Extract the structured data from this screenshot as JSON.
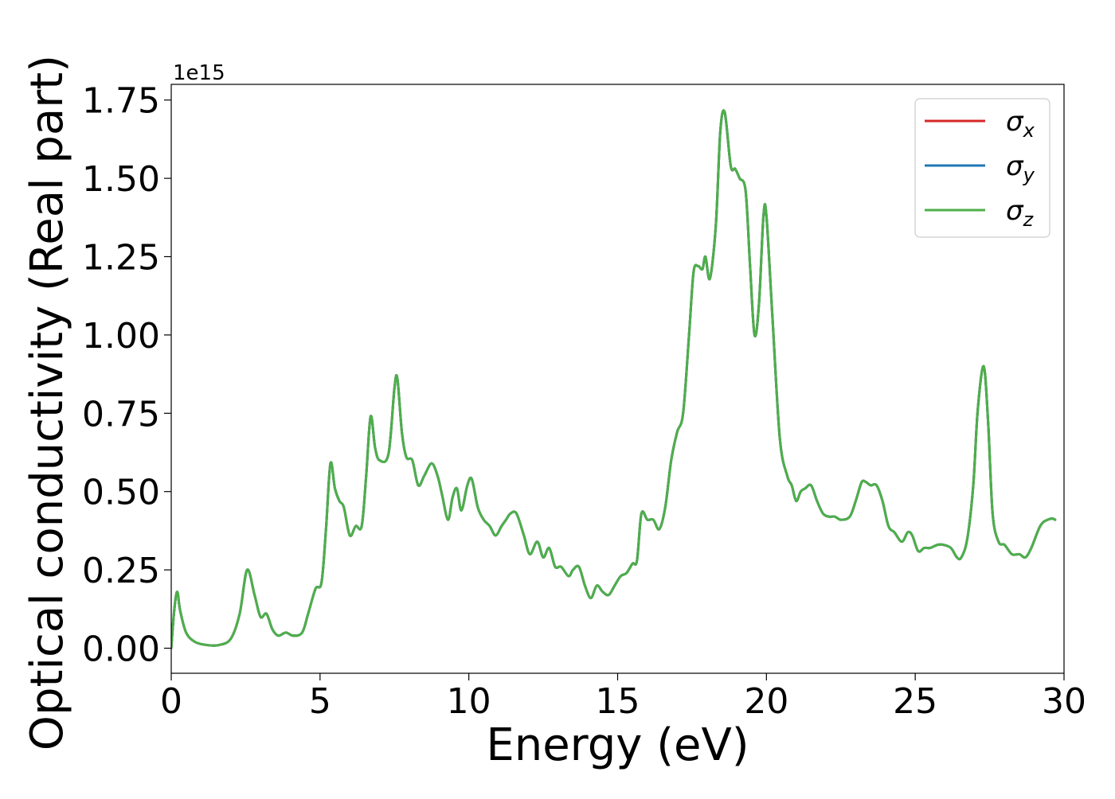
{
  "chart_data": {
    "type": "line",
    "title": "",
    "xlabel": "Energy (eV)",
    "ylabel": "Optical conductivity (Real part)",
    "offset_text": "1e15",
    "y_scale": 1000000000000000.0,
    "xlim": [
      0,
      30
    ],
    "ylim": [
      -0.08,
      1.8
    ],
    "x_ticks": [
      0,
      5,
      10,
      15,
      20,
      25,
      30
    ],
    "x_tick_labels": [
      "0",
      "5",
      "10",
      "15",
      "20",
      "25",
      "30"
    ],
    "y_ticks": [
      0.0,
      0.25,
      0.5,
      0.75,
      1.0,
      1.25,
      1.5,
      1.75
    ],
    "y_tick_labels": [
      "0.00",
      "0.25",
      "0.50",
      "0.75",
      "1.00",
      "1.25",
      "1.50",
      "1.75"
    ],
    "grid": false,
    "legend_position": "top-right",
    "series": [
      {
        "name": "σx",
        "symbol": "σ",
        "subscript": "x",
        "color": "#d62728",
        "ref": "sigma_z"
      },
      {
        "name": "σy",
        "symbol": "σ",
        "subscript": "y",
        "color": "#1f77b4",
        "ref": "sigma_z"
      },
      {
        "name": "σz",
        "symbol": "σ",
        "subscript": "z",
        "color": "#4daf4a",
        "ref": "sigma_z"
      }
    ],
    "x": [
      0,
      0.1,
      0.2,
      0.3,
      0.5,
      0.8,
      1.2,
      1.6,
      2.0,
      2.3,
      2.55,
      2.8,
      3.0,
      3.2,
      3.4,
      3.6,
      3.85,
      4.1,
      4.4,
      4.6,
      4.85,
      5.05,
      5.2,
      5.35,
      5.5,
      5.65,
      5.8,
      6.0,
      6.2,
      6.4,
      6.55,
      6.7,
      6.85,
      7.0,
      7.3,
      7.5,
      7.6,
      7.75,
      7.9,
      8.1,
      8.3,
      8.5,
      8.75,
      8.95,
      9.1,
      9.3,
      9.45,
      9.6,
      9.75,
      9.95,
      10.1,
      10.3,
      10.5,
      10.7,
      10.9,
      11.1,
      11.25,
      11.4,
      11.6,
      11.85,
      12.05,
      12.3,
      12.5,
      12.7,
      12.9,
      13.1,
      13.35,
      13.5,
      13.7,
      13.9,
      14.1,
      14.3,
      14.5,
      14.7,
      14.9,
      15.1,
      15.3,
      15.5,
      15.65,
      15.8,
      16.0,
      16.2,
      16.4,
      16.6,
      16.8,
      17.0,
      17.2,
      17.4,
      17.55,
      17.7,
      17.85,
      17.95,
      18.1,
      18.3,
      18.45,
      18.6,
      18.8,
      18.95,
      19.1,
      19.3,
      19.45,
      19.6,
      19.75,
      19.9,
      20.0,
      20.2,
      20.45,
      20.7,
      20.85,
      21.0,
      21.15,
      21.3,
      21.5,
      21.7,
      21.9,
      22.1,
      22.3,
      22.5,
      22.8,
      23.0,
      23.2,
      23.35,
      23.5,
      23.7,
      23.9,
      24.1,
      24.3,
      24.55,
      24.75,
      24.9,
      25.1,
      25.3,
      25.5,
      25.75,
      25.95,
      26.2,
      26.4,
      26.55,
      26.75,
      26.95,
      27.1,
      27.3,
      27.45,
      27.6,
      27.8,
      28.0,
      28.25,
      28.5,
      28.7,
      28.9,
      29.2,
      29.45,
      29.7,
      29.9,
      30.0
    ],
    "sigma_z": [
      0.0,
      0.12,
      0.18,
      0.12,
      0.05,
      0.02,
      0.01,
      0.01,
      0.03,
      0.11,
      0.25,
      0.17,
      0.1,
      0.11,
      0.06,
      0.04,
      0.05,
      0.04,
      0.05,
      0.11,
      0.19,
      0.21,
      0.38,
      0.59,
      0.51,
      0.47,
      0.45,
      0.36,
      0.39,
      0.39,
      0.55,
      0.74,
      0.64,
      0.6,
      0.62,
      0.83,
      0.86,
      0.69,
      0.61,
      0.6,
      0.52,
      0.55,
      0.59,
      0.55,
      0.49,
      0.41,
      0.48,
      0.51,
      0.44,
      0.52,
      0.54,
      0.45,
      0.41,
      0.39,
      0.36,
      0.39,
      0.41,
      0.43,
      0.43,
      0.36,
      0.3,
      0.34,
      0.29,
      0.32,
      0.26,
      0.26,
      0.23,
      0.25,
      0.26,
      0.2,
      0.16,
      0.2,
      0.18,
      0.17,
      0.2,
      0.23,
      0.24,
      0.27,
      0.28,
      0.43,
      0.41,
      0.41,
      0.38,
      0.45,
      0.6,
      0.69,
      0.75,
      1.0,
      1.2,
      1.22,
      1.21,
      1.25,
      1.18,
      1.35,
      1.65,
      1.71,
      1.54,
      1.53,
      1.5,
      1.46,
      1.22,
      1.0,
      1.1,
      1.38,
      1.38,
      1.06,
      0.67,
      0.55,
      0.52,
      0.47,
      0.5,
      0.51,
      0.52,
      0.47,
      0.43,
      0.42,
      0.42,
      0.41,
      0.42,
      0.47,
      0.53,
      0.53,
      0.52,
      0.52,
      0.47,
      0.39,
      0.37,
      0.34,
      0.37,
      0.36,
      0.31,
      0.32,
      0.32,
      0.33,
      0.33,
      0.32,
      0.29,
      0.29,
      0.35,
      0.52,
      0.76,
      0.9,
      0.72,
      0.43,
      0.34,
      0.33,
      0.3,
      0.3,
      0.29,
      0.32,
      0.39,
      0.41,
      0.41,
      0.37
    ]
  }
}
